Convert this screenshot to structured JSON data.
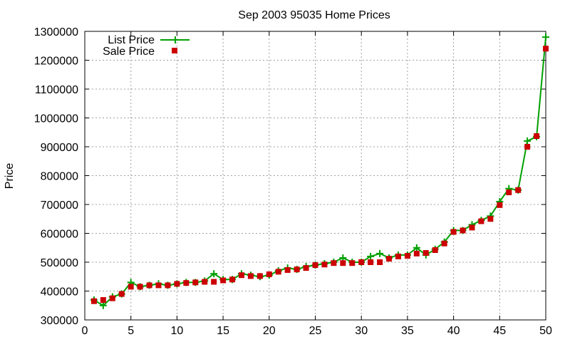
{
  "chart_data": {
    "type": "line",
    "title": "Sep 2003 95035 Home Prices",
    "xlabel": "",
    "ylabel": "Price",
    "xlim": [
      0,
      50
    ],
    "ylim": [
      300000,
      1300000
    ],
    "xticks": [
      0,
      5,
      10,
      15,
      20,
      25,
      30,
      35,
      40,
      45,
      50
    ],
    "yticks": [
      300000,
      400000,
      500000,
      600000,
      700000,
      800000,
      900000,
      1000000,
      1100000,
      1200000,
      1300000
    ],
    "grid": true,
    "legend_position": "top-left",
    "x": [
      1,
      2,
      3,
      4,
      5,
      6,
      7,
      8,
      9,
      10,
      11,
      12,
      13,
      14,
      15,
      16,
      17,
      18,
      19,
      20,
      21,
      22,
      23,
      24,
      25,
      26,
      27,
      28,
      29,
      30,
      31,
      32,
      33,
      34,
      35,
      36,
      37,
      38,
      39,
      40,
      41,
      42,
      43,
      44,
      45,
      46,
      47,
      48,
      49,
      50
    ],
    "series": [
      {
        "name": "List Price",
        "style": "line-plus",
        "color": "#00a000",
        "values": [
          369000,
          350000,
          380000,
          390000,
          430000,
          415000,
          420000,
          425000,
          420000,
          425000,
          430000,
          430000,
          435000,
          460000,
          440000,
          440000,
          460000,
          455000,
          450000,
          455000,
          470000,
          480000,
          475000,
          485000,
          490000,
          495000,
          500000,
          515000,
          500000,
          500000,
          520000,
          530000,
          515000,
          525000,
          525000,
          550000,
          525000,
          545000,
          570000,
          610000,
          610000,
          630000,
          645000,
          660000,
          710000,
          755000,
          750000,
          920000,
          935000,
          1280000
        ]
      },
      {
        "name": "Sale Price",
        "style": "points-square",
        "color": "#cc0000",
        "values": [
          365000,
          369000,
          375000,
          390000,
          415000,
          415000,
          420000,
          420000,
          420000,
          425000,
          428000,
          430000,
          432000,
          432000,
          437000,
          440000,
          455000,
          452000,
          452000,
          458000,
          467000,
          473000,
          475000,
          480000,
          490000,
          492000,
          497000,
          497000,
          497000,
          500000,
          500000,
          500000,
          512000,
          520000,
          522000,
          530000,
          532000,
          542000,
          565000,
          605000,
          610000,
          620000,
          642000,
          650000,
          698000,
          742000,
          750000,
          900000,
          937000,
          1240000
        ]
      }
    ]
  }
}
